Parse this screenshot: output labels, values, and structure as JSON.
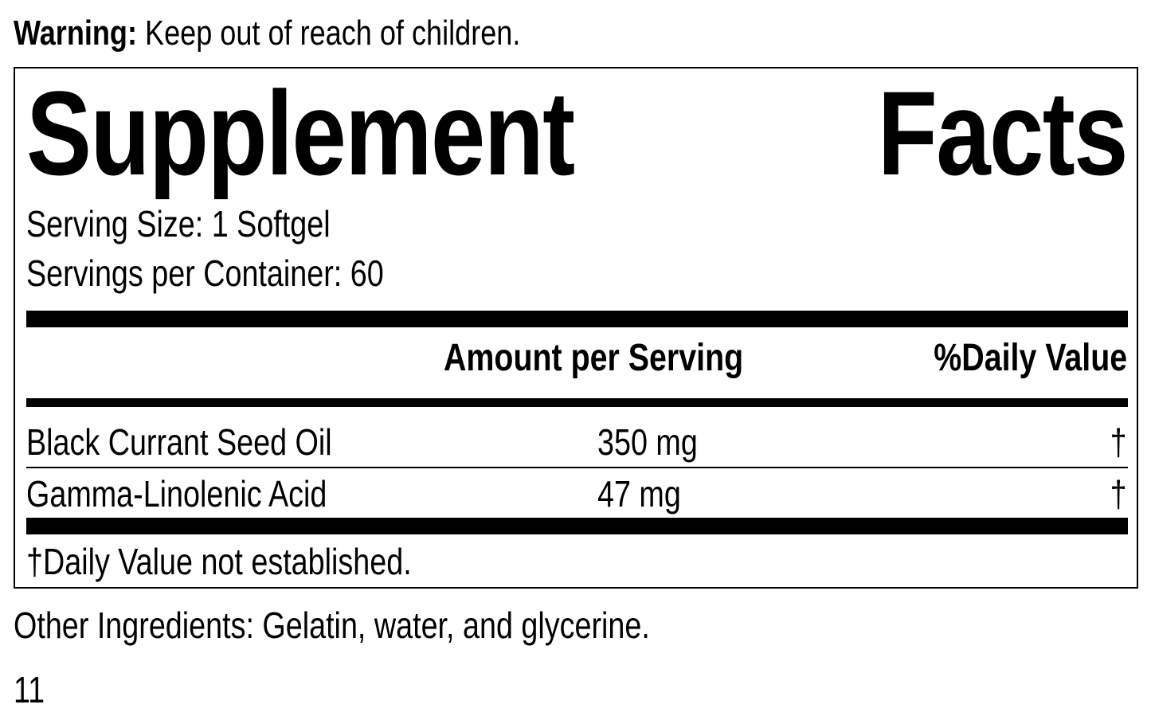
{
  "warning": {
    "label": "Warning:",
    "text": "Keep out of reach of children."
  },
  "title": {
    "word1": "Supplement",
    "word2": "Facts"
  },
  "serving_size": "Serving Size: 1 Softgel",
  "servings_per_container": "Servings per Container: 60",
  "headers": {
    "amount": "Amount per Serving",
    "daily_value": "%Daily Value"
  },
  "rows": [
    {
      "name": "Black Currant Seed Oil",
      "amount": "350 mg",
      "dv": "†"
    },
    {
      "name": "Gamma-Linolenic Acid",
      "amount": "47 mg",
      "dv": "†"
    }
  ],
  "footnote": "†Daily Value not established.",
  "other_ingredients": "Other Ingredients: Gelatin, water, and glycerine.",
  "page_number": "11"
}
